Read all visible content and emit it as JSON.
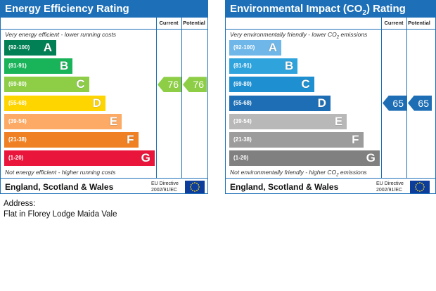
{
  "energy": {
    "title": "Energy Efficiency Rating",
    "current_label": "Current",
    "potential_label": "Potential",
    "top_note": "Very energy efficient - lower running costs",
    "bottom_note": "Not energy efficient - higher running costs",
    "bands": [
      {
        "range": "(92-100)",
        "letter": "A",
        "color": "#008054"
      },
      {
        "range": "(81-91)",
        "letter": "B",
        "color": "#19b459"
      },
      {
        "range": "(69-80)",
        "letter": "C",
        "color": "#8dce46"
      },
      {
        "range": "(55-68)",
        "letter": "D",
        "color": "#ffd500"
      },
      {
        "range": "(39-54)",
        "letter": "E",
        "color": "#fcaa65"
      },
      {
        "range": "(21-38)",
        "letter": "F",
        "color": "#ef8023"
      },
      {
        "range": "(1-20)",
        "letter": "G",
        "color": "#e9153b"
      }
    ],
    "current": {
      "value": "76",
      "band": "C",
      "color": "#8dce46"
    },
    "potential": {
      "value": "76",
      "band": "C",
      "color": "#8dce46"
    },
    "country": "England, Scotland & Wales",
    "directive_line1": "EU Directive",
    "directive_line2": "2002/91/EC"
  },
  "environment": {
    "title_prefix": "Environmental Impact (CO",
    "title_sub": "2",
    "title_suffix": ") Rating",
    "current_label": "Current",
    "potential_label": "Potential",
    "top_note_prefix": "Very environmentally friendly - lower CO",
    "top_note_sub": "2",
    "top_note_suffix": " emissions",
    "bottom_note_prefix": "Not environmentally friendly - higher CO",
    "bottom_note_sub": "2",
    "bottom_note_suffix": " emissions",
    "bands": [
      {
        "range": "(92-100)",
        "letter": "A",
        "color": "#6fb7e8"
      },
      {
        "range": "(81-91)",
        "letter": "B",
        "color": "#2fa3dc"
      },
      {
        "range": "(69-80)",
        "letter": "C",
        "color": "#1e8fd0"
      },
      {
        "range": "(55-68)",
        "letter": "D",
        "color": "#1d6eb4"
      },
      {
        "range": "(39-54)",
        "letter": "E",
        "color": "#b8b8b8"
      },
      {
        "range": "(21-38)",
        "letter": "F",
        "color": "#9c9c9c"
      },
      {
        "range": "(1-20)",
        "letter": "G",
        "color": "#808080"
      }
    ],
    "current": {
      "value": "65",
      "band": "D",
      "color": "#1d6eb4"
    },
    "potential": {
      "value": "65",
      "band": "D",
      "color": "#1d6eb4"
    },
    "country": "England, Scotland & Wales",
    "directive_line1": "EU Directive",
    "directive_line2": "2002/91/EC"
  },
  "address": {
    "label": "Address:",
    "value": "Flat in Florey Lodge Maida Vale"
  }
}
